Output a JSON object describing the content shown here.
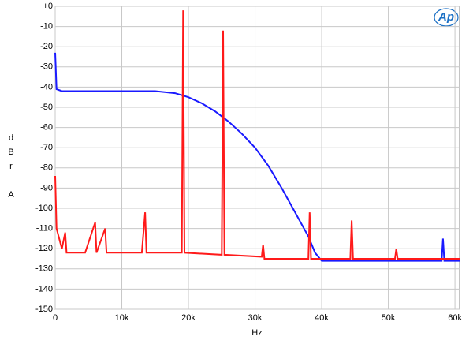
{
  "chart_data": {
    "type": "line",
    "logo": "Ap",
    "xlabel": "Hz",
    "ylabel_lines": [
      "d",
      "B",
      "r",
      "A"
    ],
    "xlim": [
      0,
      60700
    ],
    "ylim": [
      -150,
      0
    ],
    "xticks": [
      0,
      {
        "value": 10000,
        "label": "10k"
      },
      {
        "value": 20000,
        "label": "20k"
      },
      {
        "value": 30000,
        "label": "30k"
      },
      {
        "value": 40000,
        "label": "40k"
      },
      {
        "value": 50000,
        "label": "50k"
      },
      {
        "value": 60000,
        "label": "60k"
      }
    ],
    "yticks": [
      {
        "value": 0,
        "label": "+0"
      },
      -10,
      -20,
      -30,
      -40,
      -50,
      -60,
      -70,
      -80,
      -90,
      -100,
      -110,
      -120,
      -130,
      -140,
      -150
    ],
    "grid": true,
    "series": [
      {
        "color": "#1a1aff",
        "x": [
          0,
          200,
          1000,
          5000,
          10000,
          15000,
          18000,
          20000,
          22000,
          24000,
          26000,
          28000,
          30000,
          32000,
          34000,
          36000,
          38000,
          39000,
          40000,
          45000,
          50000,
          55000,
          58000,
          58200,
          58400,
          60700
        ],
        "values": [
          -23,
          -41,
          -42,
          -42,
          -42,
          -42,
          -43,
          -45,
          -48,
          -52,
          -57,
          -63,
          -70,
          -79,
          -90,
          -102,
          -114,
          -122,
          -126,
          -126,
          -126,
          -126,
          -126,
          -115,
          -126,
          -126
        ]
      },
      {
        "color": "#ff1a1a",
        "x": [
          0,
          200,
          1000,
          1500,
          1700,
          3000,
          4500,
          6000,
          6200,
          7500,
          7700,
          13000,
          13500,
          13700,
          19000,
          19200,
          19400,
          25000,
          25200,
          25400,
          31000,
          31200,
          31400,
          38000,
          38200,
          38400,
          44300,
          44500,
          44700,
          51000,
          51200,
          51400,
          58200,
          60700
        ],
        "values": [
          -84,
          -110,
          -120,
          -112,
          -122,
          -122,
          -122,
          -107,
          -122,
          -110,
          -122,
          -122,
          -102,
          -122,
          -122,
          -2,
          -122,
          -123,
          -12,
          -123,
          -124,
          -118,
          -125,
          -125,
          -102,
          -125,
          -125,
          -106,
          -125,
          -125,
          -120,
          -125,
          -125,
          -125
        ]
      }
    ]
  }
}
